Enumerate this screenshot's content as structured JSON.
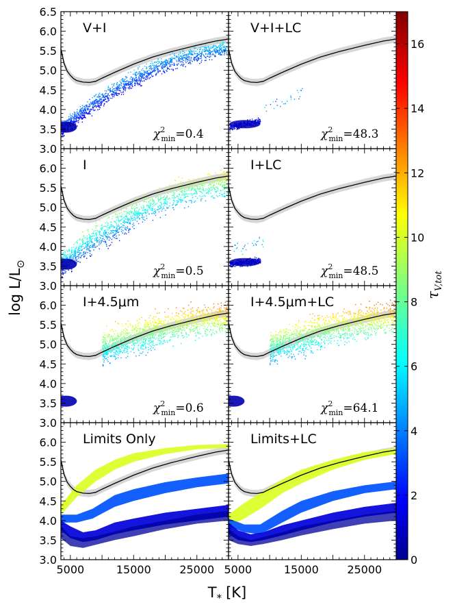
{
  "axes": {
    "xlabel": "T$_*$ [K]",
    "xlabel_main": "T",
    "xlabel_sub": "*",
    "xlabel_unit": "[K]",
    "ylabel": "log L/L$_\\odot$",
    "ylabel_main": "log L/L",
    "ylabel_sub": "⊙",
    "xlim": [
      3500,
      30000
    ],
    "ylim": [
      3.0,
      6.5
    ],
    "xticks": [
      "5000",
      "15000",
      "25000"
    ],
    "xtick_values": [
      5000,
      15000,
      25000
    ],
    "yticks": [
      "3.0",
      "3.5",
      "4.0",
      "4.5",
      "5.0",
      "5.5",
      "6.0",
      "6.5"
    ],
    "ytick_values": [
      3.0,
      3.5,
      4.0,
      4.5,
      5.0,
      5.5,
      6.0,
      6.5
    ]
  },
  "colorbar": {
    "label": "τ_V,tot",
    "label_main": "τ",
    "label_sub": "V,tot",
    "range": [
      0,
      17
    ],
    "ticks": [
      "0",
      "2",
      "4",
      "6",
      "8",
      "10",
      "12",
      "14",
      "16"
    ],
    "tick_values": [
      0,
      2,
      4,
      6,
      8,
      10,
      12,
      14,
      16
    ],
    "colormap": "jet"
  },
  "reference_curve": {
    "color": "#000000",
    "band_color": "#d6d6d6",
    "x": [
      3500,
      4000,
      4500,
      5000,
      5500,
      6000,
      7000,
      8000,
      9000,
      10000,
      12000,
      15000,
      18000,
      21000,
      25000,
      28000,
      30000
    ],
    "y": [
      5.55,
      5.18,
      4.98,
      4.87,
      4.79,
      4.74,
      4.7,
      4.69,
      4.72,
      4.8,
      4.95,
      5.16,
      5.34,
      5.48,
      5.64,
      5.75,
      5.8
    ]
  },
  "panels": [
    {
      "label": "V+I",
      "chi_prefix": "χ",
      "chi_sup": "2",
      "chi_sub": "min",
      "chi_value": "=0.4",
      "clouds": [
        {
          "x0": 3600,
          "x1": 30000,
          "y0": 3.5,
          "y1": 5.55,
          "width": 0.3,
          "curvature": 0.12,
          "tau_min": 0.5,
          "tau_max": 7,
          "tau_gradient": "bottom-left-dense"
        }
      ]
    },
    {
      "label": "V+I+LC",
      "chi_prefix": "χ",
      "chi_sup": "2",
      "chi_sub": "min",
      "chi_value": "=48.3",
      "clouds": [
        {
          "x0": 3600,
          "x1": 8500,
          "y0": 3.55,
          "y1": 3.7,
          "width": 0.12,
          "curvature": 0.05,
          "tau_min": 0.5,
          "tau_max": 3,
          "tau_gradient": "low"
        },
        {
          "x0": 9000,
          "x1": 16000,
          "y0": 4.0,
          "y1": 4.5,
          "width": 0.25,
          "curvature": 0,
          "tau_min": 3,
          "tau_max": 7,
          "tau_gradient": "sparse"
        }
      ]
    },
    {
      "label": "I",
      "chi_prefix": "χ",
      "chi_sup": "2",
      "chi_sub": "min",
      "chi_value": "=0.5",
      "clouds": [
        {
          "x0": 3600,
          "x1": 30000,
          "y0": 3.55,
          "y1": 5.6,
          "width": 0.5,
          "curvature": 0.12,
          "tau_min": 0.5,
          "tau_max": 13,
          "tau_gradient": "wide"
        }
      ]
    },
    {
      "label": "I+LC",
      "chi_prefix": "χ",
      "chi_sup": "2",
      "chi_sub": "min",
      "chi_value": "=48.5",
      "clouds": [
        {
          "x0": 3600,
          "x1": 8500,
          "y0": 3.55,
          "y1": 3.65,
          "width": 0.12,
          "curvature": 0.05,
          "tau_min": 0.5,
          "tau_max": 3,
          "tau_gradient": "low"
        },
        {
          "x0": 3800,
          "x1": 9000,
          "y0": 3.9,
          "y1": 4.1,
          "width": 0.3,
          "curvature": 0,
          "tau_min": 3,
          "tau_max": 7,
          "tau_gradient": "sparse"
        }
      ]
    },
    {
      "label": "I+4.5μm",
      "chi_prefix": "χ",
      "chi_sup": "2",
      "chi_sub": "min",
      "chi_value": "=0.6",
      "clouds": [
        {
          "x0": 10000,
          "x1": 30000,
          "y0": 4.9,
          "y1": 5.7,
          "width": 0.6,
          "curvature": 0.08,
          "tau_min": 3,
          "tau_max": 15,
          "tau_gradient": "wide"
        }
      ]
    },
    {
      "label": "I+4.5μm+LC",
      "chi_prefix": "χ",
      "chi_sup": "2",
      "chi_sub": "min",
      "chi_value": "=64.1",
      "clouds": [
        {
          "x0": 10000,
          "x1": 30000,
          "y0": 4.9,
          "y1": 5.7,
          "width": 0.6,
          "curvature": 0.08,
          "tau_min": 3,
          "tau_max": 15,
          "tau_gradient": "wide"
        }
      ]
    },
    {
      "label": "Limits Only",
      "chi_prefix": "",
      "chi_sup": "",
      "chi_sub": "",
      "chi_value": "",
      "bands": [
        {
          "tau": 10,
          "x": [
            3500,
            6000,
            9000,
            12000,
            15000,
            20000,
            25000,
            30000
          ],
          "lo": [
            4.15,
            4.6,
            5.0,
            5.3,
            5.5,
            5.7,
            5.82,
            5.86
          ],
          "hi": [
            4.4,
            4.9,
            5.3,
            5.55,
            5.72,
            5.85,
            5.93,
            5.95
          ]
        },
        {
          "tau": 3.5,
          "x": [
            3500,
            6000,
            8500,
            12000,
            15000,
            20000,
            25000,
            30000
          ],
          "lo": [
            3.95,
            3.95,
            4.05,
            4.35,
            4.5,
            4.7,
            4.85,
            4.95
          ],
          "hi": [
            4.15,
            4.15,
            4.3,
            4.65,
            4.8,
            4.98,
            5.1,
            5.2
          ]
        },
        {
          "tau": 1.5,
          "x": [
            3500,
            5000,
            7000,
            9000,
            12000,
            15000,
            20000,
            25000,
            30000
          ],
          "lo": [
            3.75,
            3.55,
            3.45,
            3.5,
            3.65,
            3.75,
            3.9,
            4.0,
            4.1
          ],
          "hi": [
            4.0,
            3.85,
            3.7,
            3.75,
            3.95,
            4.05,
            4.2,
            4.3,
            4.4
          ]
        },
        {
          "tau": 0.5,
          "x": [
            3500,
            5000,
            7000,
            9000,
            12000,
            15000,
            20000,
            25000,
            30000
          ],
          "lo": [
            3.55,
            3.35,
            3.3,
            3.38,
            3.5,
            3.6,
            3.78,
            3.92,
            4.0
          ],
          "hi": [
            3.85,
            3.6,
            3.55,
            3.6,
            3.72,
            3.85,
            4.0,
            4.15,
            4.25
          ]
        }
      ]
    },
    {
      "label": "Limits+LC",
      "chi_prefix": "",
      "chi_sup": "",
      "chi_sub": "",
      "chi_value": "",
      "bands": [
        {
          "tau": 10,
          "x": [
            3500,
            6000,
            9000,
            12000,
            15000,
            20000,
            25000,
            30000
          ],
          "lo": [
            3.85,
            4.05,
            4.35,
            4.7,
            4.95,
            5.3,
            5.55,
            5.7
          ],
          "hi": [
            4.15,
            4.45,
            4.75,
            5.05,
            5.3,
            5.55,
            5.75,
            5.85
          ]
        },
        {
          "tau": 3.5,
          "x": [
            3500,
            6000,
            8500,
            12000,
            15000,
            20000,
            25000,
            30000
          ],
          "lo": [
            3.85,
            3.7,
            3.65,
            3.95,
            4.2,
            4.5,
            4.7,
            4.8
          ],
          "hi": [
            4.05,
            3.9,
            3.9,
            4.25,
            4.5,
            4.75,
            4.9,
            5.0
          ]
        },
        {
          "tau": 1.5,
          "x": [
            3500,
            5000,
            7000,
            9000,
            12000,
            15000,
            20000,
            25000,
            30000
          ],
          "lo": [
            3.65,
            3.5,
            3.45,
            3.5,
            3.62,
            3.75,
            3.95,
            4.1,
            4.2
          ],
          "hi": [
            3.95,
            3.75,
            3.65,
            3.7,
            3.88,
            4.0,
            4.2,
            4.35,
            4.45
          ]
        },
        {
          "tau": 0.5,
          "x": [
            3500,
            5000,
            7000,
            9000,
            12000,
            15000,
            20000,
            25000,
            30000
          ],
          "lo": [
            3.5,
            3.4,
            3.35,
            3.4,
            3.5,
            3.62,
            3.78,
            3.92,
            4.0
          ],
          "hi": [
            3.8,
            3.6,
            3.5,
            3.58,
            3.7,
            3.85,
            4.0,
            4.15,
            4.25
          ]
        }
      ]
    }
  ],
  "chart_data": [
    {
      "type": "scatter",
      "panel": "V+I",
      "chi2_min": 0.4,
      "xlabel": "T$_*$ [K]",
      "ylabel": "log L/L$_\\odot$",
      "xlim": [
        3500,
        30000
      ],
      "ylim": [
        3.0,
        6.5
      ]
    },
    {
      "type": "scatter",
      "panel": "V+I+LC",
      "chi2_min": 48.3,
      "xlabel": "T$_*$ [K]",
      "ylabel": "log L/L$_\\odot$",
      "xlim": [
        3500,
        30000
      ],
      "ylim": [
        3.0,
        6.5
      ]
    },
    {
      "type": "scatter",
      "panel": "I",
      "chi2_min": 0.5,
      "xlabel": "T$_*$ [K]",
      "ylabel": "log L/L$_\\odot$",
      "xlim": [
        3500,
        30000
      ],
      "ylim": [
        3.0,
        6.5
      ]
    },
    {
      "type": "scatter",
      "panel": "I+LC",
      "chi2_min": 48.5,
      "xlabel": "T$_*$ [K]",
      "ylabel": "log L/L$_\\odot$",
      "xlim": [
        3500,
        30000
      ],
      "ylim": [
        3.0,
        6.5
      ]
    },
    {
      "type": "scatter",
      "panel": "I+4.5μm",
      "chi2_min": 0.6,
      "xlabel": "T$_*$ [K]",
      "ylabel": "log L/L$_\\odot$",
      "xlim": [
        3500,
        30000
      ],
      "ylim": [
        3.0,
        6.5
      ]
    },
    {
      "type": "scatter",
      "panel": "I+4.5μm+LC",
      "chi2_min": 64.1,
      "xlabel": "T$_*$ [K]",
      "ylabel": "log L/L$_\\odot$",
      "xlim": [
        3500,
        30000
      ],
      "ylim": [
        3.0,
        6.5
      ]
    },
    {
      "type": "area",
      "panel": "Limits Only",
      "xlabel": "T$_*$ [K]",
      "ylabel": "log L/L$_\\odot$",
      "xlim": [
        3500,
        30000
      ],
      "ylim": [
        3.0,
        6.5
      ]
    },
    {
      "type": "area",
      "panel": "Limits+LC",
      "xlabel": "T$_*$ [K]",
      "ylabel": "log L/L$_\\odot$",
      "xlim": [
        3500,
        30000
      ],
      "ylim": [
        3.0,
        6.5
      ]
    }
  ]
}
